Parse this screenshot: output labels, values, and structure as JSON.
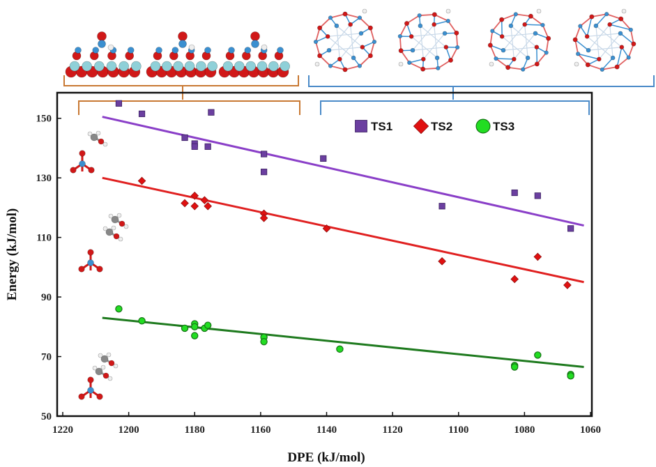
{
  "chart_data": {
    "type": "scatter",
    "xlabel": "DPE (kJ/mol)",
    "ylabel": "Energy (kJ/mol)",
    "xlim": [
      1220,
      1060
    ],
    "ylim": [
      50,
      160
    ],
    "x_reversed": true,
    "x_ticks": [
      "1220",
      "1200",
      "1180",
      "1160",
      "1140",
      "1120",
      "1100",
      "1080",
      "1060"
    ],
    "y_ticks": [
      "150",
      "130",
      "110",
      "90",
      "70",
      "50"
    ],
    "legend_position": "top-right",
    "grid": false,
    "series": [
      {
        "name": "TS1",
        "marker": "square",
        "color": "#6b3fa0",
        "line_color": "#8a3fc8",
        "points": [
          [
            1203,
            155
          ],
          [
            1196,
            151.5
          ],
          [
            1183,
            143.5
          ],
          [
            1180,
            141.5
          ],
          [
            1180,
            140.5
          ],
          [
            1176,
            140.5
          ],
          [
            1175,
            152
          ],
          [
            1159,
            138
          ],
          [
            1159,
            132
          ],
          [
            1141,
            136.5
          ],
          [
            1105,
            120.5
          ],
          [
            1083,
            125
          ],
          [
            1076,
            124
          ],
          [
            1066,
            113
          ]
        ],
        "fit": [
          [
            1208,
            150.5
          ],
          [
            1062,
            114
          ]
        ]
      },
      {
        "name": "TS2",
        "marker": "diamond",
        "color": "#e01010",
        "line_color": "#e02020",
        "points": [
          [
            1196,
            129
          ],
          [
            1183,
            121.5
          ],
          [
            1180,
            124
          ],
          [
            1180,
            120.5
          ],
          [
            1177,
            122.5
          ],
          [
            1176,
            120.5
          ],
          [
            1159,
            118
          ],
          [
            1159,
            116.5
          ],
          [
            1140,
            113
          ],
          [
            1105,
            102
          ],
          [
            1083,
            96
          ],
          [
            1076,
            103.5
          ],
          [
            1067,
            94
          ]
        ],
        "fit": [
          [
            1208,
            130
          ],
          [
            1062,
            95
          ]
        ]
      },
      {
        "name": "TS3",
        "marker": "circle",
        "color": "#22dd22",
        "line_color": "#1e7a1e",
        "points": [
          [
            1203,
            86
          ],
          [
            1196,
            82
          ],
          [
            1183,
            79.5
          ],
          [
            1180,
            81
          ],
          [
            1180,
            80
          ],
          [
            1180,
            77
          ],
          [
            1177,
            79.5
          ],
          [
            1176,
            80.5
          ],
          [
            1159,
            76.5
          ],
          [
            1159,
            75
          ],
          [
            1136,
            72.5
          ],
          [
            1083,
            67
          ],
          [
            1083,
            66.5
          ],
          [
            1076,
            70.5
          ],
          [
            1066,
            64
          ],
          [
            1066,
            63.5
          ]
        ],
        "fit": [
          [
            1208,
            83
          ],
          [
            1062,
            66.5
          ]
        ]
      }
    ]
  },
  "colors": {
    "bracket_left": "#c87832",
    "bracket_right": "#4a8ac8",
    "atom_red": "#d01818",
    "atom_blue": "#3a8fd0",
    "atom_cyan": "#8fd0d8",
    "atom_white": "#eeeeee",
    "atom_grey": "#888888"
  },
  "illustrations": {
    "surface_models": [
      "slab-model",
      "slab-model",
      "slab-model"
    ],
    "cluster_models": [
      "cluster-model",
      "cluster-model",
      "cluster-model",
      "cluster-model"
    ],
    "molecule_insets": [
      "ts1-structure",
      "ts2-structure",
      "ts3-structure"
    ]
  }
}
